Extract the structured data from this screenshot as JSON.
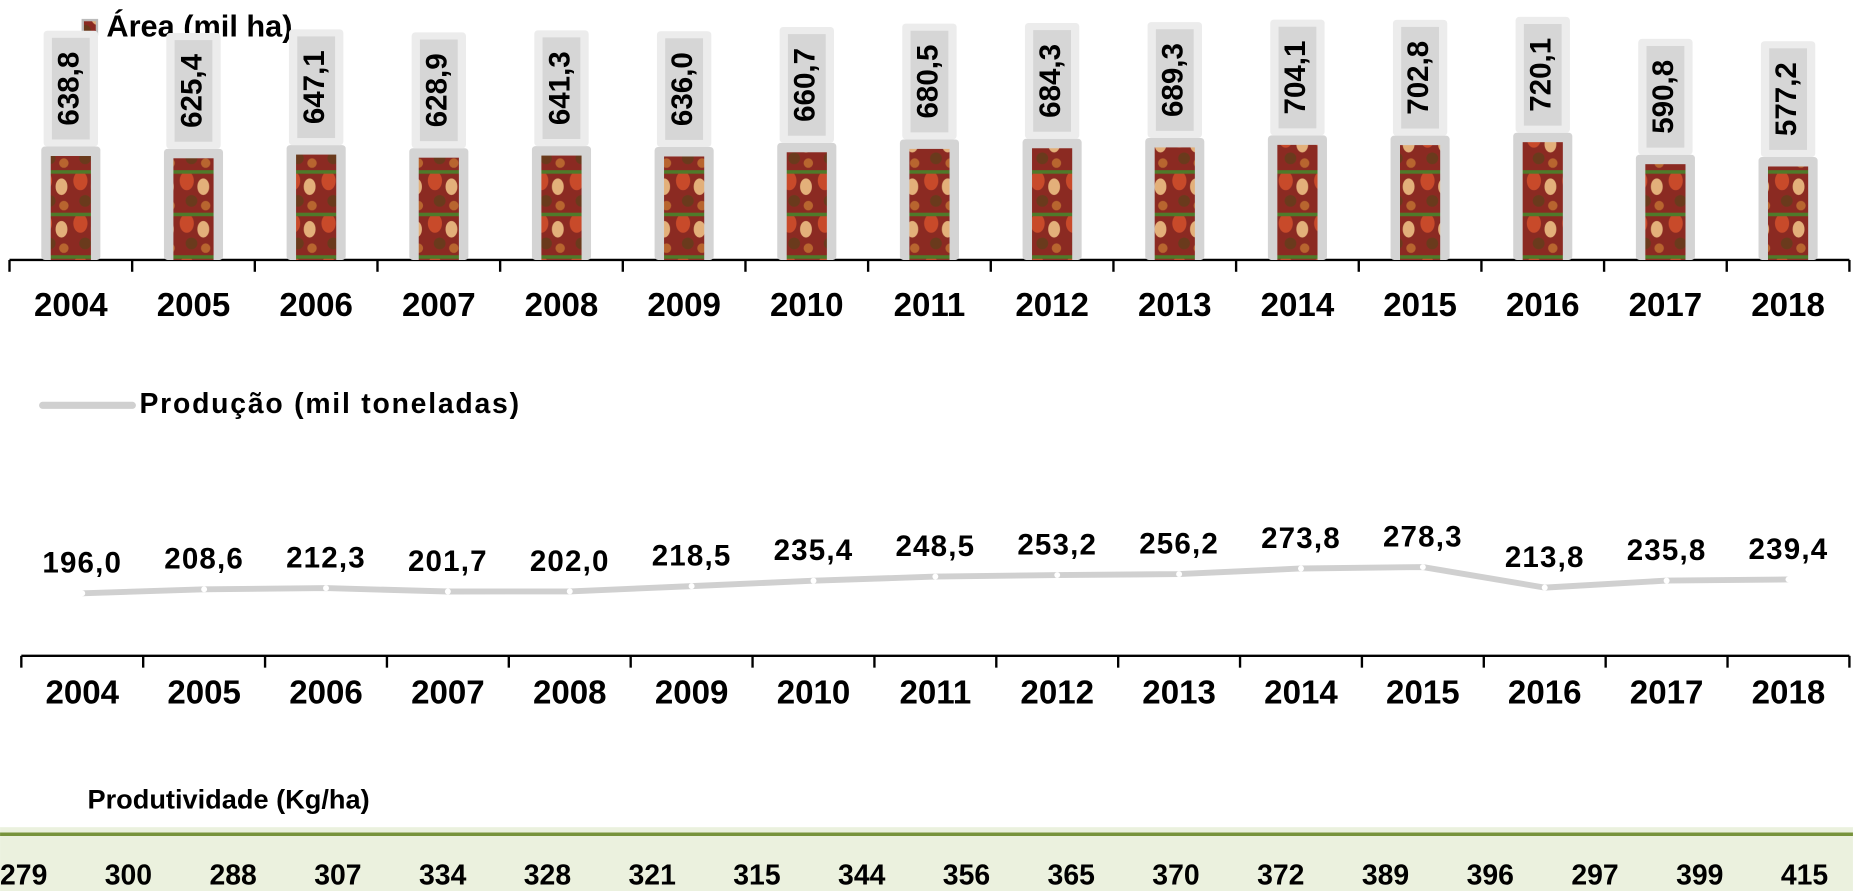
{
  "chart_data": [
    {
      "type": "bar",
      "legend": "Área (mil ha)",
      "categories": [
        "2004",
        "2005",
        "2006",
        "2007",
        "2008",
        "2009",
        "2010",
        "2011",
        "2012",
        "2013",
        "2014",
        "2015",
        "2016",
        "2017",
        "2018"
      ],
      "values": [
        638.8,
        625.4,
        647.1,
        628.9,
        641.3,
        636.0,
        660.7,
        680.5,
        684.3,
        689.3,
        704.1,
        702.8,
        720.1,
        590.8,
        577.2
      ],
      "value_labels": [
        "638,8",
        "625,4",
        "647,1",
        "628,9",
        "641,3",
        "636,0",
        "660,7",
        "680,5",
        "684,3",
        "689,3",
        "704,1",
        "702,8",
        "720,1",
        "590,8",
        "577,2"
      ],
      "color": "#a0362c",
      "ylim": [
        0,
        1500
      ]
    },
    {
      "type": "line",
      "legend": "Produção (mil toneladas)",
      "categories": [
        "2004",
        "2005",
        "2006",
        "2007",
        "2008",
        "2009",
        "2010",
        "2011",
        "2012",
        "2013",
        "2014",
        "2015",
        "2016",
        "2017",
        "2018"
      ],
      "values": [
        196.0,
        208.6,
        212.3,
        201.7,
        202.0,
        218.5,
        235.4,
        248.5,
        253.2,
        256.2,
        273.8,
        278.3,
        213.8,
        235.8,
        239.4
      ],
      "value_labels": [
        "196,0",
        "208,6",
        "212,3",
        "201,7",
        "202,0",
        "218,5",
        "235,4",
        "248,5",
        "253,2",
        "256,2",
        "273,8",
        "278,3",
        "213,8",
        "235,8",
        "239,4"
      ],
      "color": "#d0d0d0",
      "ylim": [
        0,
        1000
      ]
    }
  ],
  "table": {
    "title": "Produtividade (Kg/ha)",
    "values": [
      279,
      300,
      288,
      307,
      334,
      328,
      321,
      315,
      344,
      356,
      365,
      370,
      372,
      389,
      396,
      297,
      399,
      415
    ]
  }
}
